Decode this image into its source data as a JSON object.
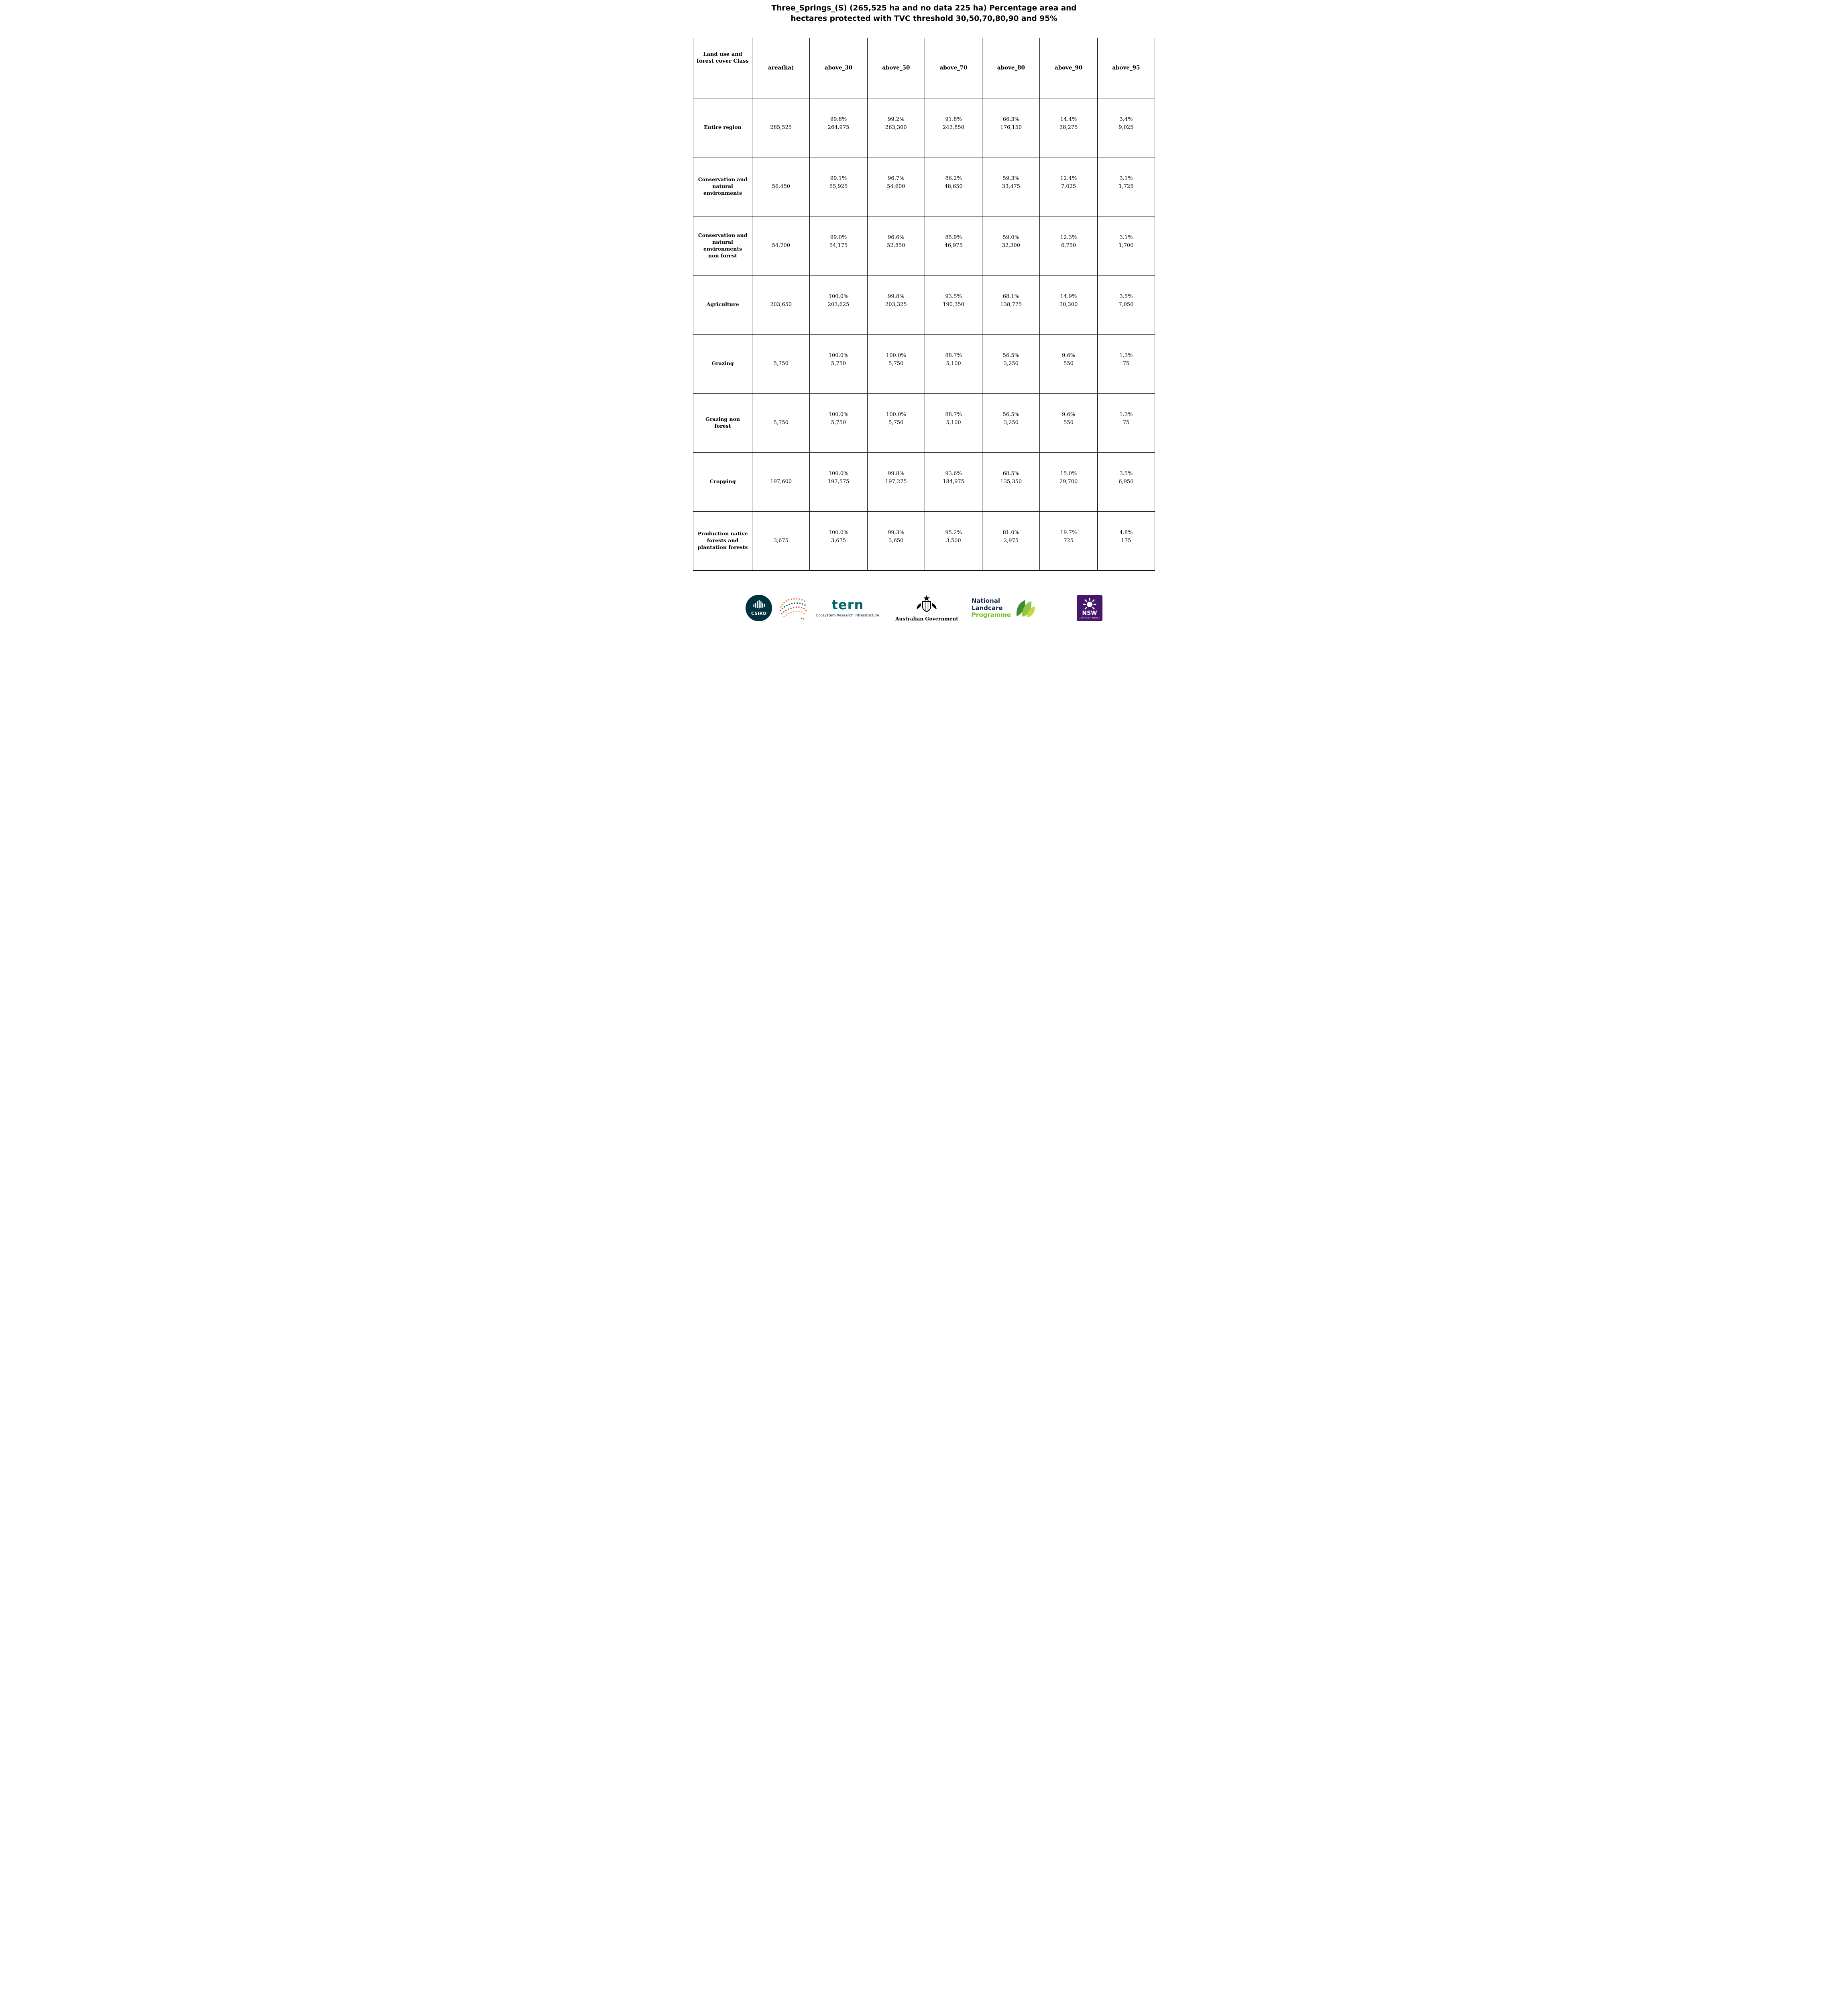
{
  "title": "Three_Springs_(S) (265,525 ha and no data 225 ha) Percentage area and\nhectares protected with TVC threshold 30,50,70,80,90 and 95%",
  "table": {
    "columns": [
      "Land use and forest cover Class",
      "area(ha)",
      "above_30",
      "above_50",
      "above_70",
      "above_80",
      "above_90",
      "above_95"
    ],
    "rows": [
      {
        "label": "Entire region",
        "area": "265,525",
        "thresholds": [
          {
            "percent": "99.8%",
            "hectares": "264,975"
          },
          {
            "percent": "99.2%",
            "hectares": "263,300"
          },
          {
            "percent": "91.8%",
            "hectares": "243,850"
          },
          {
            "percent": "66.3%",
            "hectares": "176,150"
          },
          {
            "percent": "14.4%",
            "hectares": "38,275"
          },
          {
            "percent": "3.4%",
            "hectares": "9,025"
          }
        ]
      },
      {
        "label": "Conservation and natural environments",
        "area": "56,450",
        "thresholds": [
          {
            "percent": "99.1%",
            "hectares": "55,925"
          },
          {
            "percent": "96.7%",
            "hectares": "54,600"
          },
          {
            "percent": "86.2%",
            "hectares": "48,650"
          },
          {
            "percent": "59.3%",
            "hectares": "33,475"
          },
          {
            "percent": "12.4%",
            "hectares": "7,025"
          },
          {
            "percent": "3.1%",
            "hectares": "1,725"
          }
        ]
      },
      {
        "label": "Conservation and natural environments non forest",
        "area": "54,700",
        "thresholds": [
          {
            "percent": "99.0%",
            "hectares": "54,175"
          },
          {
            "percent": "96.6%",
            "hectares": "52,850"
          },
          {
            "percent": "85.9%",
            "hectares": "46,975"
          },
          {
            "percent": "59.0%",
            "hectares": "32,300"
          },
          {
            "percent": "12.3%",
            "hectares": "6,750"
          },
          {
            "percent": "3.1%",
            "hectares": "1,700"
          }
        ]
      },
      {
        "label": "Agriculture",
        "area": "203,650",
        "thresholds": [
          {
            "percent": "100.0%",
            "hectares": "203,625"
          },
          {
            "percent": "99.8%",
            "hectares": "203,325"
          },
          {
            "percent": "93.5%",
            "hectares": "190,350"
          },
          {
            "percent": "68.1%",
            "hectares": "138,775"
          },
          {
            "percent": "14.9%",
            "hectares": "30,300"
          },
          {
            "percent": "3.5%",
            "hectares": "7,050"
          }
        ]
      },
      {
        "label": "Grazing",
        "area": "5,750",
        "thresholds": [
          {
            "percent": "100.0%",
            "hectares": "5,750"
          },
          {
            "percent": "100.0%",
            "hectares": "5,750"
          },
          {
            "percent": "88.7%",
            "hectares": "5,100"
          },
          {
            "percent": "56.5%",
            "hectares": "3,250"
          },
          {
            "percent": "9.6%",
            "hectares": "550"
          },
          {
            "percent": "1.3%",
            "hectares": "75"
          }
        ]
      },
      {
        "label": "Grazing non forest",
        "area": "5,750",
        "thresholds": [
          {
            "percent": "100.0%",
            "hectares": "5,750"
          },
          {
            "percent": "100.0%",
            "hectares": "5,750"
          },
          {
            "percent": "88.7%",
            "hectares": "5,100"
          },
          {
            "percent": "56.5%",
            "hectares": "3,250"
          },
          {
            "percent": "9.6%",
            "hectares": "550"
          },
          {
            "percent": "1.3%",
            "hectares": "75"
          }
        ]
      },
      {
        "label": "Cropping",
        "area": "197,600",
        "thresholds": [
          {
            "percent": "100.0%",
            "hectares": "197,575"
          },
          {
            "percent": "99.8%",
            "hectares": "197,275"
          },
          {
            "percent": "93.6%",
            "hectares": "184,975"
          },
          {
            "percent": "68.5%",
            "hectares": "135,350"
          },
          {
            "percent": "15.0%",
            "hectares": "29,700"
          },
          {
            "percent": "3.5%",
            "hectares": "6,950"
          }
        ]
      },
      {
        "label": "Production native forests and plantation forests",
        "area": "3,675",
        "thresholds": [
          {
            "percent": "100.0%",
            "hectares": "3,675"
          },
          {
            "percent": "99.3%",
            "hectares": "3,650"
          },
          {
            "percent": "95.2%",
            "hectares": "3,500"
          },
          {
            "percent": "81.0%",
            "hectares": "2,975"
          },
          {
            "percent": "19.7%",
            "hectares": "725"
          },
          {
            "percent": "4.8%",
            "hectares": "175"
          }
        ]
      }
    ]
  },
  "footer": {
    "csiro": {
      "label": "CSIRO"
    },
    "tern": {
      "label": "tern",
      "subtitle": "Ecosystem Research Infrastructure"
    },
    "australian_government": {
      "label": "Australian Government"
    },
    "landcare": {
      "line1": "National",
      "line2": "Landcare",
      "line3": "Programme"
    },
    "nsw": {
      "line1": "NSW",
      "line2": "GOVERNMENT"
    }
  },
  "colors": {
    "csiro_teal": "#00313f",
    "tern_teal": "#00646e",
    "landcare_navy": "#12284c",
    "landcare_green": "#78be20",
    "nsw_purple": "#46166b"
  }
}
